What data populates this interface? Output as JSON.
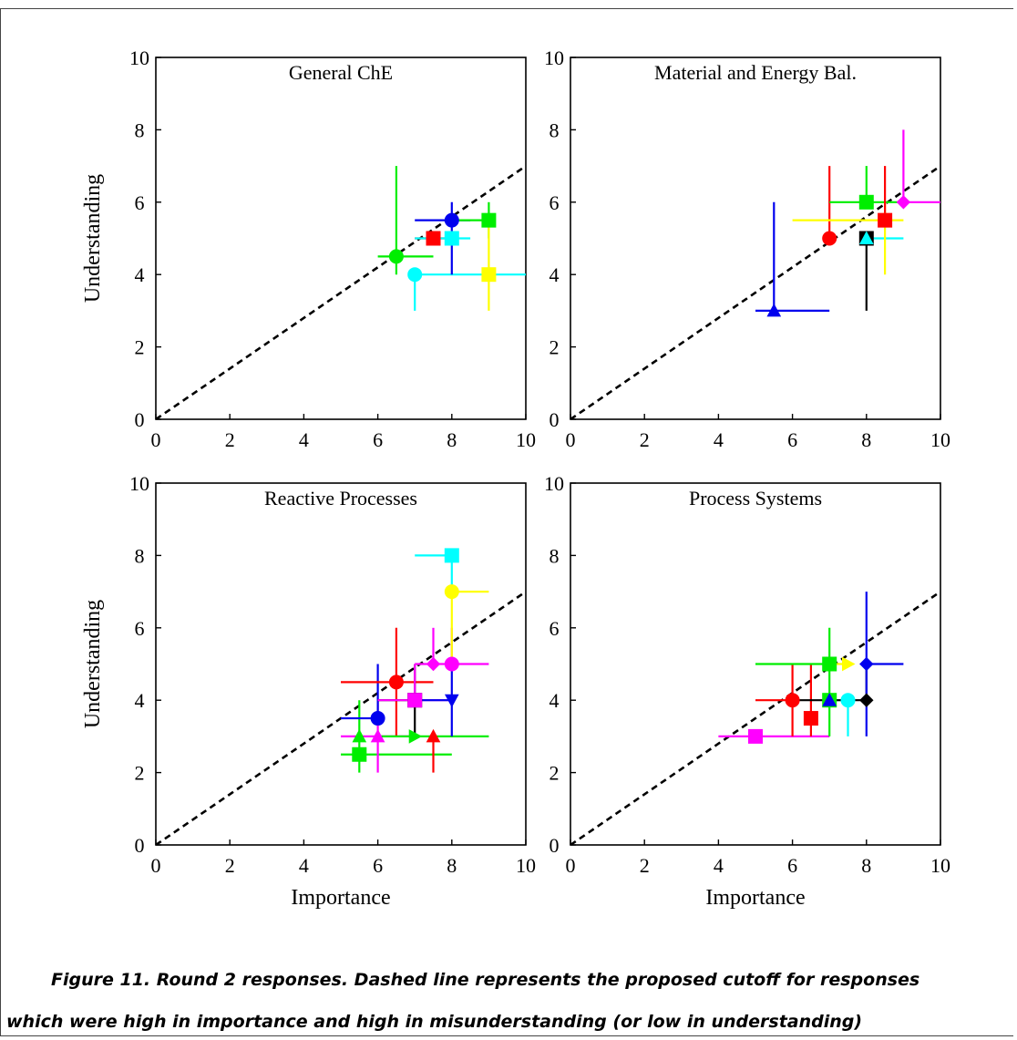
{
  "caption": {
    "line1": "Figure 11. Round 2 responses. Dashed line represents the proposed cutoff for responses",
    "line2": "which were high in importance and high in misunderstanding (or low in understanding)"
  },
  "chart_data": [
    {
      "type": "scatter",
      "title": "General ChE",
      "xlabel": "",
      "ylabel": "Understanding",
      "xlim": [
        0,
        10
      ],
      "ylim": [
        0,
        10
      ],
      "xticks": [
        "0",
        "2",
        "4",
        "6",
        "8",
        "10"
      ],
      "yticks": [
        "0",
        "2",
        "4",
        "6",
        "8",
        "10"
      ],
      "cutoff_line": {
        "x": [
          0,
          10
        ],
        "y": [
          0,
          7
        ],
        "style": "dashed"
      },
      "points": [
        {
          "x": 6.5,
          "y": 4.5,
          "xerr": [
            6,
            7.5
          ],
          "yerr": [
            4,
            7
          ],
          "color": "#00ee00",
          "marker": "circle"
        },
        {
          "x": 7,
          "y": 4,
          "xerr": [
            7,
            10
          ],
          "yerr": [
            3,
            4
          ],
          "color": "#00ffff",
          "marker": "circle"
        },
        {
          "x": 7.5,
          "y": 5,
          "xerr": [
            7,
            8
          ],
          "yerr": [
            5,
            5
          ],
          "color": "#ff0000",
          "marker": "square"
        },
        {
          "x": 8,
          "y": 5.5,
          "xerr": [
            7,
            8.5
          ],
          "yerr": [
            4,
            6
          ],
          "color": "#0000ee",
          "marker": "circle"
        },
        {
          "x": 8,
          "y": 5,
          "xerr": [
            7,
            8.5
          ],
          "yerr": [
            5,
            5
          ],
          "color": "#00ffff",
          "marker": "square"
        },
        {
          "x": 9,
          "y": 5.5,
          "xerr": [
            8,
            9
          ],
          "yerr": [
            5,
            6
          ],
          "color": "#00ee00",
          "marker": "square"
        },
        {
          "x": 9,
          "y": 4,
          "xerr": [
            9,
            9
          ],
          "yerr": [
            3,
            5.5
          ],
          "color": "#ffff00",
          "marker": "square"
        }
      ]
    },
    {
      "type": "scatter",
      "title": "Material and Energy Bal.",
      "xlabel": "",
      "ylabel": "",
      "xlim": [
        0,
        10
      ],
      "ylim": [
        0,
        10
      ],
      "xticks": [
        "0",
        "2",
        "4",
        "6",
        "8",
        "10"
      ],
      "yticks": [
        "0",
        "2",
        "4",
        "6",
        "8",
        "10"
      ],
      "cutoff_line": {
        "x": [
          0,
          10
        ],
        "y": [
          0,
          7
        ],
        "style": "dashed"
      },
      "points": [
        {
          "x": 5.5,
          "y": 3,
          "xerr": [
            5,
            7
          ],
          "yerr": [
            3,
            6
          ],
          "color": "#0000ee",
          "marker": "triangle-up"
        },
        {
          "x": 7,
          "y": 5,
          "xerr": [
            7,
            7
          ],
          "yerr": [
            5,
            7
          ],
          "color": "#ff0000",
          "marker": "circle"
        },
        {
          "x": 8,
          "y": 5,
          "xerr": [
            8,
            8
          ],
          "yerr": [
            3,
            5
          ],
          "color": "#000000",
          "marker": "square"
        },
        {
          "x": 8,
          "y": 5,
          "xerr": [
            8,
            9
          ],
          "yerr": [
            5,
            5
          ],
          "color": "#00ffff",
          "marker": "triangle-up"
        },
        {
          "x": 8,
          "y": 6,
          "xerr": [
            7,
            9
          ],
          "yerr": [
            6,
            7
          ],
          "color": "#00ee00",
          "marker": "square"
        },
        {
          "x": 8.5,
          "y": 5.5,
          "xerr": [
            6,
            9
          ],
          "yerr": [
            4,
            6
          ],
          "color": "#ffff00",
          "marker": "circle"
        },
        {
          "x": 8.5,
          "y": 5.5,
          "xerr": [
            8.5,
            8.5
          ],
          "yerr": [
            5.5,
            7
          ],
          "color": "#ff0000",
          "marker": "square"
        },
        {
          "x": 9,
          "y": 6,
          "xerr": [
            9,
            10
          ],
          "yerr": [
            6,
            8
          ],
          "color": "#ff00ff",
          "marker": "diamond"
        }
      ]
    },
    {
      "type": "scatter",
      "title": "Reactive Processes",
      "xlabel": "Importance",
      "ylabel": "Understanding",
      "xlim": [
        0,
        10
      ],
      "ylim": [
        0,
        10
      ],
      "xticks": [
        "0",
        "2",
        "4",
        "6",
        "8",
        "10"
      ],
      "yticks": [
        "0",
        "2",
        "4",
        "6",
        "8",
        "10"
      ],
      "cutoff_line": {
        "x": [
          0,
          10
        ],
        "y": [
          0,
          7
        ],
        "style": "dashed"
      },
      "points": [
        {
          "x": 5.5,
          "y": 2.5,
          "xerr": [
            5,
            8
          ],
          "yerr": [
            2.5,
            2.5
          ],
          "color": "#00ee00",
          "marker": "square"
        },
        {
          "x": 5.5,
          "y": 3,
          "xerr": [
            5.5,
            5.5
          ],
          "yerr": [
            2,
            4
          ],
          "color": "#00ee00",
          "marker": "triangle-up"
        },
        {
          "x": 6,
          "y": 3,
          "xerr": [
            5,
            7
          ],
          "yerr": [
            2,
            4
          ],
          "color": "#ff00ff",
          "marker": "triangle-up"
        },
        {
          "x": 6,
          "y": 3.5,
          "xerr": [
            5,
            6
          ],
          "yerr": [
            3.5,
            5
          ],
          "color": "#0000ee",
          "marker": "circle"
        },
        {
          "x": 6.5,
          "y": 4.5,
          "xerr": [
            5,
            7.5
          ],
          "yerr": [
            3,
            6
          ],
          "color": "#ff0000",
          "marker": "circle"
        },
        {
          "x": 7,
          "y": 4,
          "xerr": [
            6,
            7
          ],
          "yerr": [
            3,
            5
          ],
          "color": "#000000",
          "marker": "square"
        },
        {
          "x": 7,
          "y": 4,
          "xerr": [
            6,
            8
          ],
          "yerr": [
            4,
            5
          ],
          "color": "#ff00ff",
          "marker": "square"
        },
        {
          "x": 7,
          "y": 3,
          "xerr": [
            6,
            9
          ],
          "yerr": [
            3,
            3
          ],
          "color": "#00ee00",
          "marker": "triangle-right"
        },
        {
          "x": 7.5,
          "y": 3,
          "xerr": [
            7.5,
            7.5
          ],
          "yerr": [
            2,
            3
          ],
          "color": "#ff0000",
          "marker": "triangle-up"
        },
        {
          "x": 7.5,
          "y": 5,
          "xerr": [
            7,
            8
          ],
          "yerr": [
            5,
            6
          ],
          "color": "#ff00ff",
          "marker": "diamond"
        },
        {
          "x": 8,
          "y": 4,
          "xerr": [
            7,
            8
          ],
          "yerr": [
            3,
            5
          ],
          "color": "#0000ee",
          "marker": "triangle-down"
        },
        {
          "x": 8,
          "y": 5,
          "xerr": [
            8,
            9
          ],
          "yerr": [
            5,
            6
          ],
          "color": "#ff00ff",
          "marker": "circle"
        },
        {
          "x": 8,
          "y": 7,
          "xerr": [
            8,
            9
          ],
          "yerr": [
            5,
            7
          ],
          "color": "#ffff00",
          "marker": "circle"
        },
        {
          "x": 8,
          "y": 8,
          "xerr": [
            7,
            8
          ],
          "yerr": [
            7,
            8
          ],
          "color": "#00ffff",
          "marker": "square"
        }
      ]
    },
    {
      "type": "scatter",
      "title": "Process Systems",
      "xlabel": "Importance",
      "ylabel": "",
      "xlim": [
        0,
        10
      ],
      "ylim": [
        0,
        10
      ],
      "xticks": [
        "0",
        "2",
        "4",
        "6",
        "8",
        "10"
      ],
      "yticks": [
        "0",
        "2",
        "4",
        "6",
        "8",
        "10"
      ],
      "cutoff_line": {
        "x": [
          0,
          10
        ],
        "y": [
          0,
          7
        ],
        "style": "dashed"
      },
      "points": [
        {
          "x": 5,
          "y": 3,
          "xerr": [
            4,
            7
          ],
          "yerr": [
            3,
            3
          ],
          "color": "#ff00ff",
          "marker": "square"
        },
        {
          "x": 6,
          "y": 4,
          "xerr": [
            5,
            6
          ],
          "yerr": [
            3,
            5
          ],
          "color": "#ff0000",
          "marker": "circle"
        },
        {
          "x": 6.5,
          "y": 3.5,
          "xerr": [
            6.5,
            6.5
          ],
          "yerr": [
            3,
            5
          ],
          "color": "#ff0000",
          "marker": "square"
        },
        {
          "x": 7,
          "y": 4,
          "xerr": [
            7,
            7
          ],
          "yerr": [
            3,
            4
          ],
          "color": "#00ee00",
          "marker": "square"
        },
        {
          "x": 7,
          "y": 4,
          "xerr": [
            7,
            7
          ],
          "yerr": [
            4,
            4
          ],
          "color": "#0000ee",
          "marker": "triangle-up"
        },
        {
          "x": 7,
          "y": 5,
          "xerr": [
            5,
            7
          ],
          "yerr": [
            4,
            6
          ],
          "color": "#00ee00",
          "marker": "square"
        },
        {
          "x": 7.5,
          "y": 4,
          "xerr": [
            7,
            7.5
          ],
          "yerr": [
            3,
            4
          ],
          "color": "#00ffff",
          "marker": "circle"
        },
        {
          "x": 7.5,
          "y": 5,
          "xerr": [
            7,
            7.5
          ],
          "yerr": [
            5,
            5
          ],
          "color": "#ffff00",
          "marker": "triangle-right"
        },
        {
          "x": 8,
          "y": 4,
          "xerr": [
            6,
            8
          ],
          "yerr": [
            4,
            5
          ],
          "color": "#000000",
          "marker": "diamond"
        },
        {
          "x": 8,
          "y": 5,
          "xerr": [
            8,
            9
          ],
          "yerr": [
            3,
            7
          ],
          "color": "#0000ee",
          "marker": "diamond"
        }
      ]
    }
  ]
}
